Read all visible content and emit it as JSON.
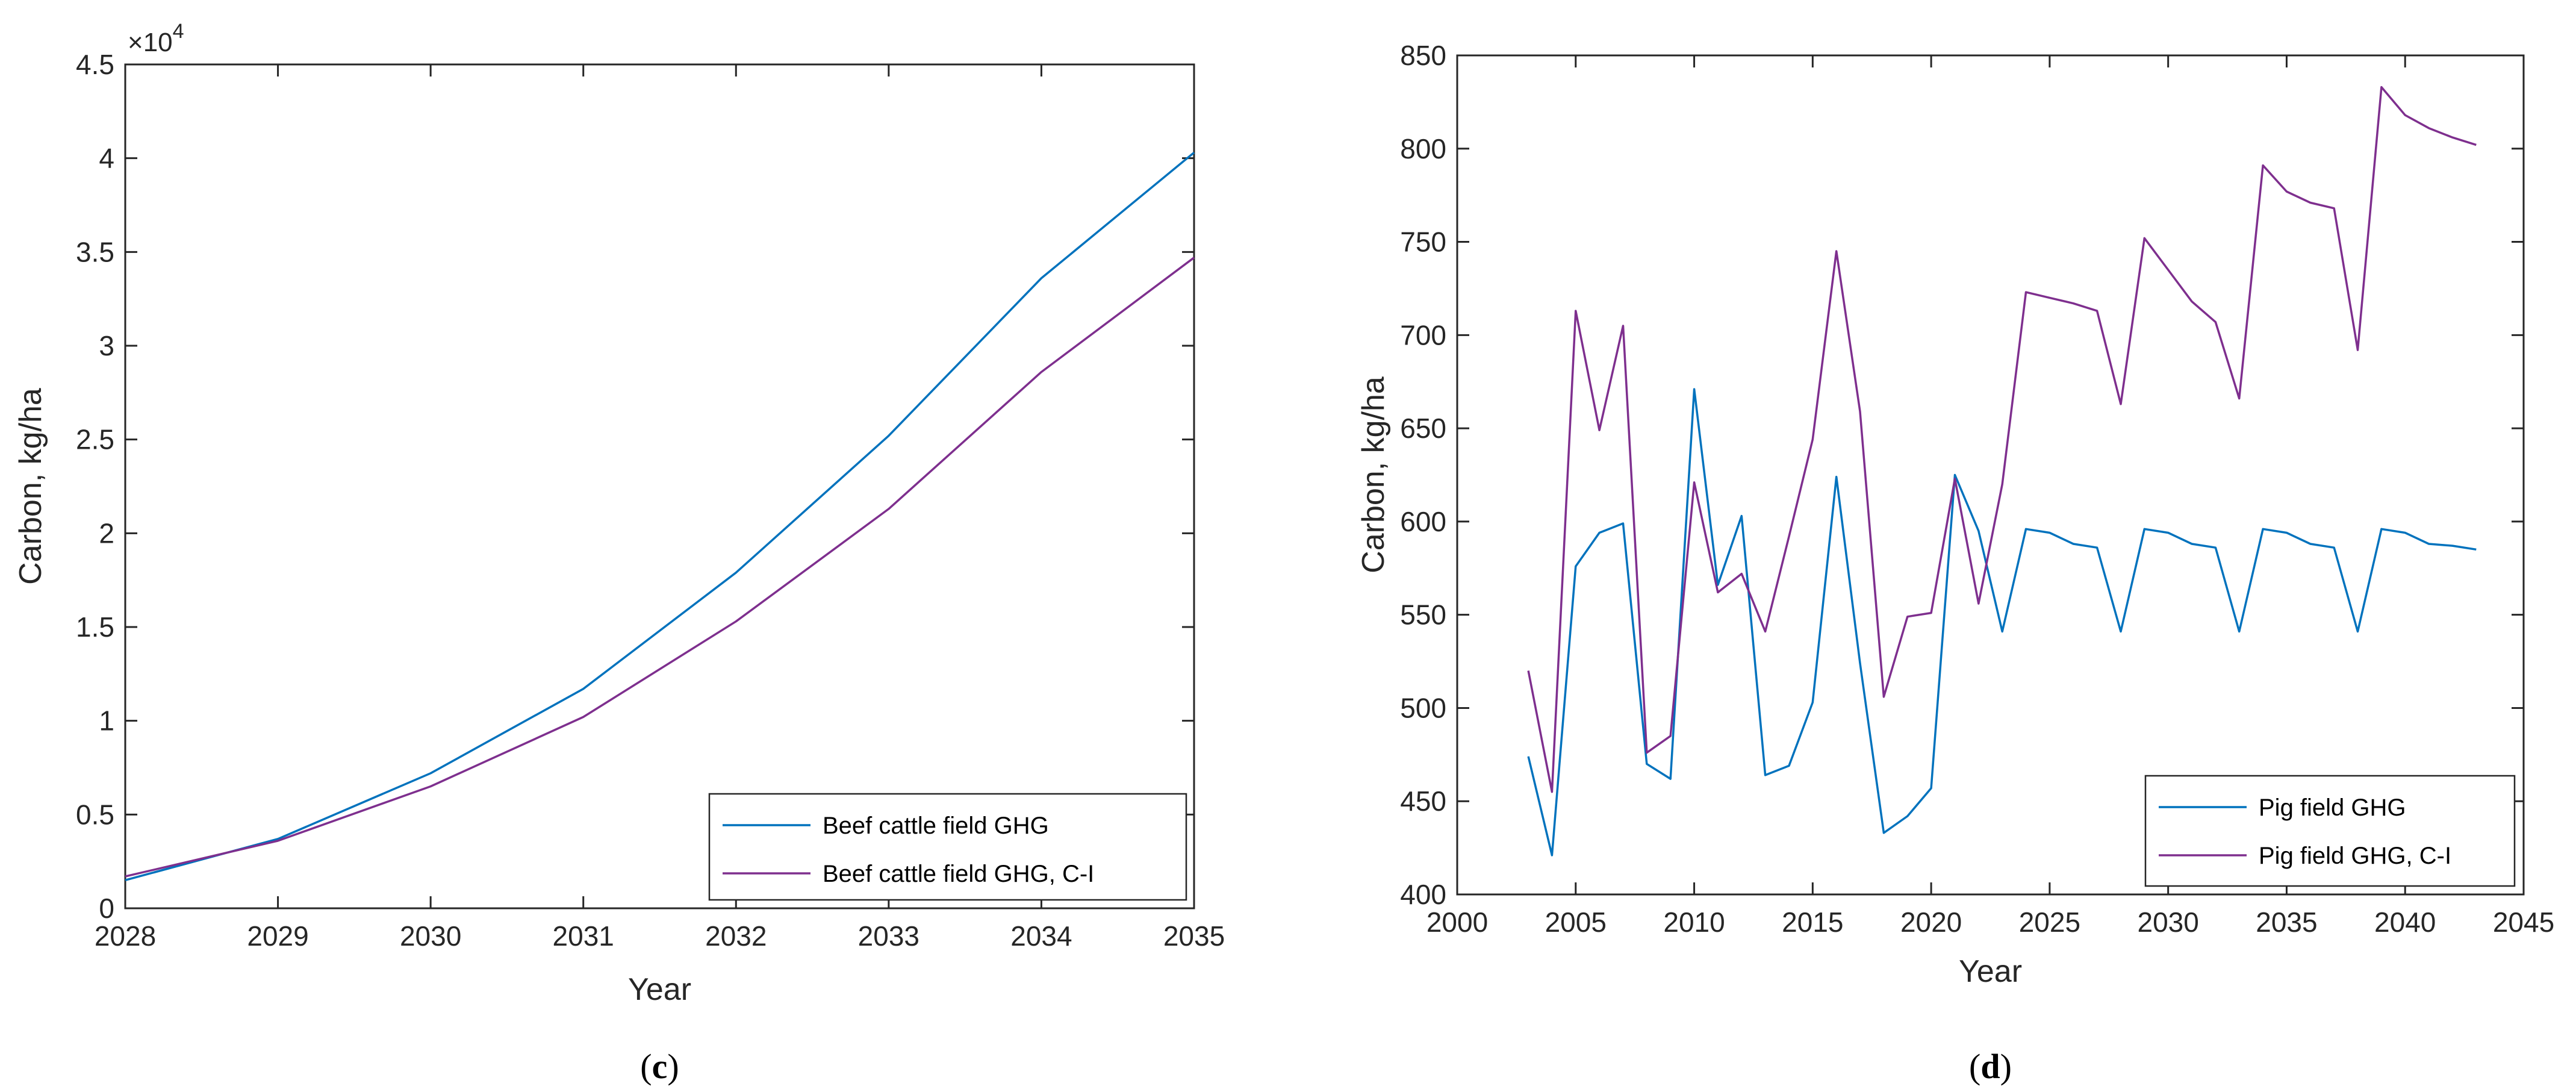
{
  "chart_data": [
    {
      "type": "line",
      "caption_open": "(",
      "caption_letter": "c",
      "caption_close": ")",
      "xlabel": "Year",
      "ylabel": "Carbon, kg/ha",
      "exponent_base": "×10",
      "exponent_power": "4",
      "xlim": [
        2028,
        2035
      ],
      "ylim": [
        0,
        4.5
      ],
      "xticks": [
        "2028",
        "2029",
        "2030",
        "2031",
        "2032",
        "2033",
        "2034",
        "2035"
      ],
      "yticks": [
        "0",
        "0.5",
        "1",
        "1.5",
        "2",
        "2.5",
        "3",
        "3.5",
        "4",
        "4.5"
      ],
      "legend_position": "bottom-right",
      "x": [
        2028,
        2029,
        2030,
        2031,
        2032,
        2033,
        2034,
        2035
      ],
      "series": [
        {
          "name": "Beef cattle field GHG",
          "color": "#0072BD",
          "values": [
            0.15,
            0.37,
            0.72,
            1.17,
            1.79,
            2.52,
            3.36,
            4.03
          ]
        },
        {
          "name": "Beef cattle field GHG, C-I",
          "color": "#7E2F8E",
          "values": [
            0.17,
            0.36,
            0.65,
            1.02,
            1.53,
            2.13,
            2.86,
            3.47
          ]
        }
      ]
    },
    {
      "type": "line",
      "caption_open": "(",
      "caption_letter": "d",
      "caption_close": ")",
      "xlabel": "Year",
      "ylabel": "Carbon, kg/ha",
      "xlim": [
        2000,
        2045
      ],
      "ylim": [
        400,
        850
      ],
      "xticks": [
        "2000",
        "2005",
        "2010",
        "2015",
        "2020",
        "2025",
        "2030",
        "2035",
        "2040",
        "2045"
      ],
      "yticks": [
        "400",
        "450",
        "500",
        "550",
        "600",
        "650",
        "700",
        "750",
        "800",
        "850"
      ],
      "legend_position": "bottom-right",
      "x": [
        2003,
        2004,
        2005,
        2006,
        2007,
        2008,
        2009,
        2010,
        2011,
        2012,
        2013,
        2014,
        2015,
        2016,
        2017,
        2018,
        2019,
        2020,
        2021,
        2022,
        2023,
        2024,
        2025,
        2026,
        2027,
        2028,
        2029,
        2030,
        2031,
        2032,
        2033,
        2034,
        2035,
        2036,
        2037,
        2038,
        2039,
        2040,
        2041,
        2042,
        2043
      ],
      "series": [
        {
          "name": "Pig field GHG",
          "color": "#0072BD",
          "values": [
            474,
            421,
            576,
            594,
            599,
            470,
            462,
            671,
            566,
            603,
            464,
            469,
            503,
            624,
            524,
            433,
            442,
            457,
            625,
            595,
            541,
            596,
            594,
            588,
            586,
            541,
            596,
            594,
            588,
            586,
            541,
            596,
            594,
            588,
            586,
            541,
            596,
            594,
            588,
            587,
            585
          ]
        },
        {
          "name": "Pig field GHG, C-I",
          "color": "#7E2F8E",
          "values": [
            520,
            455,
            713,
            649,
            705,
            476,
            485,
            621,
            562,
            572,
            541,
            592,
            644,
            745,
            659,
            506,
            549,
            551,
            623,
            556,
            620,
            723,
            720,
            717,
            713,
            663,
            752,
            735,
            718,
            707,
            666,
            791,
            777,
            771,
            768,
            692,
            833,
            818,
            811,
            806,
            802
          ]
        }
      ]
    }
  ]
}
